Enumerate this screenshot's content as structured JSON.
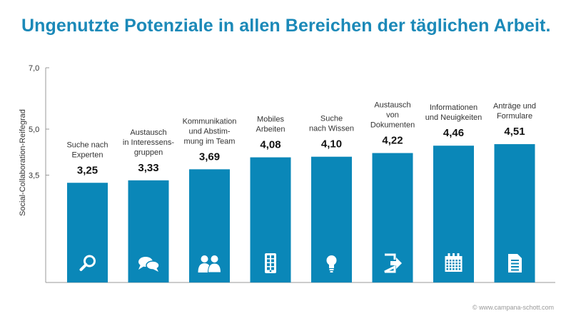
{
  "chart_data": {
    "type": "bar",
    "title": "Ungenutzte Potenziale in allen Bereichen der täglichen Arbeit.",
    "ylabel": "Social-Collaboration-Reifegrad",
    "xlabel": "",
    "ylim": [
      0,
      7.0
    ],
    "yticks": [
      {
        "value": 3.5,
        "label": "3,5"
      },
      {
        "value": 5.0,
        "label": "5,0"
      },
      {
        "value": 7.0,
        "label": "7,0"
      }
    ],
    "categories": [
      [
        "Suche nach",
        "Experten"
      ],
      [
        "Austausch",
        "in Interessens-",
        "gruppen"
      ],
      [
        "Kommunikation",
        "und Abstim-",
        "mung im Team"
      ],
      [
        "Mobiles",
        "Arbeiten"
      ],
      [
        "Suche",
        "nach Wissen"
      ],
      [
        "Austausch",
        "von",
        "Dokumenten"
      ],
      [
        "Informationen",
        "und Neuigkeiten"
      ],
      [
        "Anträge und",
        "Formulare"
      ]
    ],
    "values": [
      3.25,
      3.33,
      3.69,
      4.08,
      4.1,
      4.22,
      4.46,
      4.51
    ],
    "value_labels": [
      "3,25",
      "3,33",
      "3,69",
      "4,08",
      "4,10",
      "4,22",
      "4,46",
      "4,51"
    ],
    "icons": [
      "search-icon",
      "chat-bubbles-icon",
      "people-icon",
      "mobile-device-icon",
      "lightbulb-icon",
      "document-share-icon",
      "calendar-icon",
      "form-document-icon"
    ],
    "bar_color": "#0a87b8",
    "grid": false,
    "legend": "none"
  },
  "footer": "© www.campana-schott.com",
  "colors": {
    "title": "#1b89b8",
    "bar": "#0a87b8",
    "axis": "#999999"
  }
}
